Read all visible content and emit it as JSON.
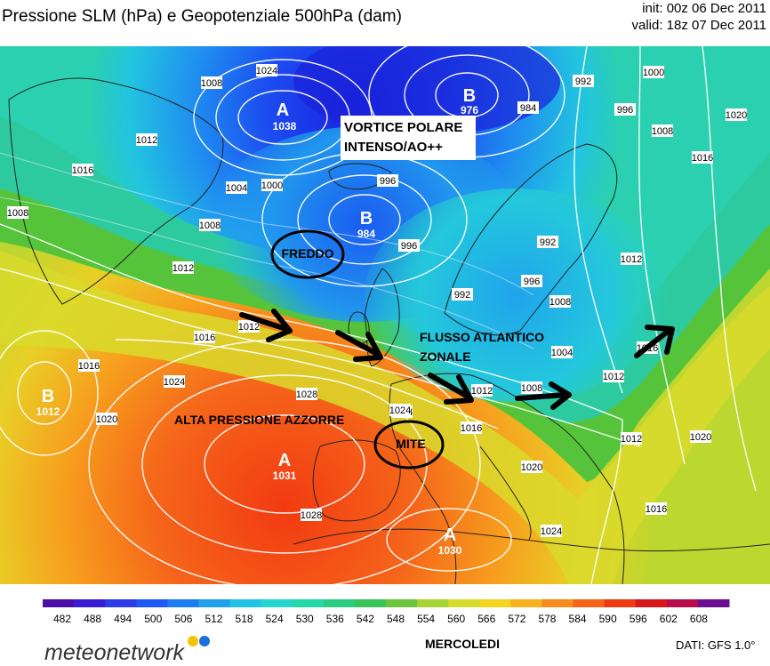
{
  "header": {
    "title": "Pressione SLM (hPa) e Geopotenziale 500hPa (dam)",
    "init": "init: 00z 06 Dec 2011",
    "valid": "valid: 18z 07 Dec 2011"
  },
  "pressure_centers": [
    {
      "type": "A",
      "value": "1038"
    },
    {
      "type": "B",
      "value": "976"
    },
    {
      "type": "B",
      "value": "984"
    },
    {
      "type": "B",
      "value": "1012"
    },
    {
      "type": "A",
      "value": "1031"
    },
    {
      "type": "A",
      "value": "1030"
    }
  ],
  "isobar_labels": [
    "1024",
    "1008",
    "1012",
    "1016",
    "1004",
    "1000",
    "996",
    "992",
    "984",
    "1008",
    "1020",
    "1016",
    "996",
    "1000",
    "996",
    "1008",
    "1012",
    "1016",
    "1028",
    "1024",
    "1020",
    "1024",
    "1028",
    "1012",
    "1016",
    "1000",
    "1004",
    "1008",
    "992",
    "996",
    "992",
    "1012",
    "1016",
    "1020",
    "1012",
    "1020",
    "1016",
    "1024",
    "1020"
  ],
  "annotations": {
    "vortex": "VORTICE POLARE\nINTENSO/AO++",
    "cold": "FREDDO",
    "flow": "FLUSSO ATLANTICO\nZONALE",
    "azores": "ALTA PRESSIONE AZZORRE",
    "mild": "MITE"
  },
  "legend": {
    "values": [
      "482",
      "488",
      "494",
      "500",
      "506",
      "512",
      "518",
      "524",
      "530",
      "536",
      "542",
      "548",
      "554",
      "560",
      "566",
      "572",
      "578",
      "584",
      "590",
      "596",
      "602",
      "608"
    ],
    "colors": [
      "#4b0fa8",
      "#3a1bd6",
      "#2d3ce8",
      "#2058f5",
      "#1c7cf2",
      "#21a0ee",
      "#22c2e8",
      "#25d6cf",
      "#26d8a8",
      "#2ccc82",
      "#3cc45a",
      "#6ec43a",
      "#a6d232",
      "#d6dc2c",
      "#f4d420",
      "#f7b01e",
      "#f78a1c",
      "#f56318",
      "#ee3a14",
      "#d8171c",
      "#b80d4a",
      "#6a0f8f"
    ]
  },
  "footer": {
    "logo": "meteonetwork",
    "day": "MERCOLEDI",
    "source": "DATI:  GFS  1.0°"
  }
}
